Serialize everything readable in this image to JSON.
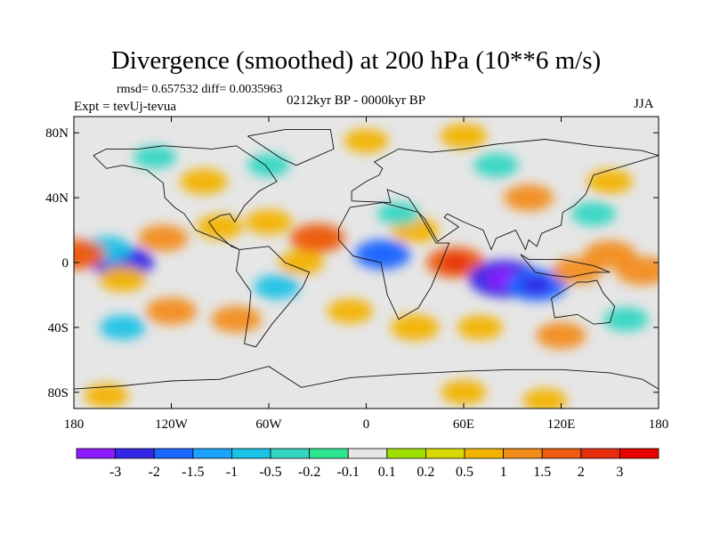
{
  "chart_data": {
    "type": "heatmap",
    "title": "Divergence (smoothed) at 200 hPa (10**6 m/s)",
    "stats_text": "rmsd= 0.657532 diff= 0.0035963",
    "experiment_text": "Expt = tevUj-tevua",
    "period_text": "0212kyr BP - 0000kyr BP",
    "season_text": "JJA",
    "x_axis": {
      "range": [
        -180,
        180
      ],
      "ticks": [
        -180,
        -120,
        -60,
        0,
        60,
        120,
        180
      ],
      "tick_labels": [
        "180",
        "120W",
        "60W",
        "0",
        "60E",
        "120E",
        "180"
      ]
    },
    "y_axis": {
      "range": [
        -90,
        90
      ],
      "ticks": [
        80,
        40,
        0,
        -40,
        -80
      ],
      "tick_labels": [
        "80N",
        "40N",
        "0",
        "40S",
        "80S"
      ]
    },
    "colorbar": {
      "labels": [
        "-3",
        "-2",
        "-1.5",
        "-1",
        "-0.5",
        "-0.2",
        "-0.1",
        "0.1",
        "0.2",
        "0.5",
        "1",
        "1.5",
        "2",
        "3"
      ],
      "colors": [
        "#8c1aff",
        "#3326e6",
        "#1a66ff",
        "#1aa3ff",
        "#1ac2e6",
        "#33d6c2",
        "#2ee690",
        "#e6e6e6",
        "#9ee000",
        "#d9d900",
        "#f2b300",
        "#f28c1a",
        "#ed5c12",
        "#e62e0f",
        "#e60000"
      ],
      "unit": "10**6 m/s"
    },
    "anomalies": [
      {
        "lon": -150,
        "lat": 0,
        "value": -2.2
      },
      {
        "lon": -160,
        "lat": 8,
        "value": -1.0
      },
      {
        "lon": -125,
        "lat": 15,
        "value": 1.0
      },
      {
        "lon": -150,
        "lat": -10,
        "value": 0.8
      },
      {
        "lon": -120,
        "lat": -30,
        "value": 1.1
      },
      {
        "lon": -80,
        "lat": -35,
        "value": 1.0
      },
      {
        "lon": -150,
        "lat": -40,
        "value": -0.6
      },
      {
        "lon": -40,
        "lat": 0,
        "value": 0.6
      },
      {
        "lon": -30,
        "lat": 15,
        "value": 1.5
      },
      {
        "lon": -60,
        "lat": 25,
        "value": 0.7
      },
      {
        "lon": -90,
        "lat": 22,
        "value": 0.7
      },
      {
        "lon": -55,
        "lat": -15,
        "value": -0.6
      },
      {
        "lon": -100,
        "lat": 50,
        "value": 0.8
      },
      {
        "lon": -60,
        "lat": 60,
        "value": -0.3
      },
      {
        "lon": -130,
        "lat": 65,
        "value": -0.3
      },
      {
        "lon": 30,
        "lat": 20,
        "value": 0.8
      },
      {
        "lon": 10,
        "lat": 5,
        "value": -1.6
      },
      {
        "lon": 20,
        "lat": 30,
        "value": -0.3
      },
      {
        "lon": -10,
        "lat": -30,
        "value": 0.6
      },
      {
        "lon": 30,
        "lat": -40,
        "value": 0.9
      },
      {
        "lon": 55,
        "lat": 0,
        "value": 1.8
      },
      {
        "lon": 85,
        "lat": -10,
        "value": -3.0
      },
      {
        "lon": 105,
        "lat": -14,
        "value": -2.0
      },
      {
        "lon": 130,
        "lat": -5,
        "value": 1.0
      },
      {
        "lon": 150,
        "lat": 5,
        "value": 1.2
      },
      {
        "lon": 170,
        "lat": -5,
        "value": 1.4
      },
      {
        "lon": -178,
        "lat": 5,
        "value": 1.6
      },
      {
        "lon": 100,
        "lat": 40,
        "value": 1.0
      },
      {
        "lon": 80,
        "lat": 60,
        "value": -0.5
      },
      {
        "lon": 150,
        "lat": 50,
        "value": 0.6
      },
      {
        "lon": 140,
        "lat": 30,
        "value": -0.5
      },
      {
        "lon": 120,
        "lat": -45,
        "value": 1.0
      },
      {
        "lon": 160,
        "lat": -35,
        "value": -0.5
      },
      {
        "lon": 70,
        "lat": -40,
        "value": 0.6
      },
      {
        "lon": 0,
        "lat": 75,
        "value": 0.5
      },
      {
        "lon": 60,
        "lat": 78,
        "value": 0.7
      },
      {
        "lon": 60,
        "lat": -80,
        "value": 0.6
      },
      {
        "lon": -160,
        "lat": -82,
        "value": 0.5
      },
      {
        "lon": 110,
        "lat": -85,
        "value": 0.5
      }
    ]
  }
}
